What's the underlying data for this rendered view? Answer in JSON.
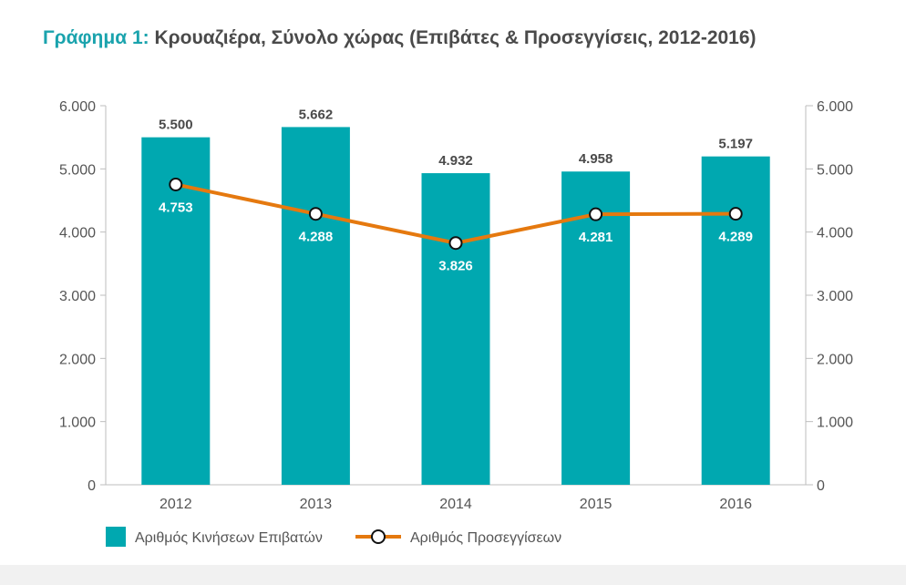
{
  "title": {
    "prefix": "Γράφημα 1:",
    "text": "Κρουαζιέρα, Σύνολο χώρας (Επιβάτες & Προσεγγίσεις, 2012-2016)"
  },
  "colors": {
    "bars": "#00a8b0",
    "line": "#e5790f",
    "title_prefix": "#1aa3ad",
    "text": "#4a4a4a"
  },
  "chart_data": {
    "type": "bar",
    "categories": [
      "2012",
      "2013",
      "2014",
      "2015",
      "2016"
    ],
    "series": [
      {
        "name": "Αριθμός Κινήσεων Επιβατών",
        "type": "bar",
        "axis": "left",
        "values": [
          5500,
          5662,
          4932,
          4958,
          5197
        ],
        "labels": [
          "5.500",
          "5.662",
          "4.932",
          "4.958",
          "5.197"
        ]
      },
      {
        "name": "Αριθμός Προσεγγίσεων",
        "type": "line",
        "axis": "right",
        "values": [
          4753,
          4288,
          3826,
          4281,
          4289
        ],
        "labels": [
          "4.753",
          "4.288",
          "3.826",
          "4.281",
          "4.289"
        ]
      }
    ],
    "y_left": {
      "ylim": [
        0,
        6000
      ],
      "ticks": [
        0,
        1000,
        2000,
        3000,
        4000,
        5000,
        6000
      ],
      "tick_labels": [
        "0",
        "1.000",
        "2.000",
        "3.000",
        "4.000",
        "5.000",
        "6.000"
      ]
    },
    "y_right": {
      "ylim": [
        0,
        6000
      ],
      "ticks": [
        0,
        1000,
        2000,
        3000,
        4000,
        5000,
        6000
      ],
      "tick_labels": [
        "0",
        "1.000",
        "2.000",
        "3.000",
        "4.000",
        "5.000",
        "6.000"
      ]
    },
    "grid": false,
    "legend": "bottom-left"
  }
}
